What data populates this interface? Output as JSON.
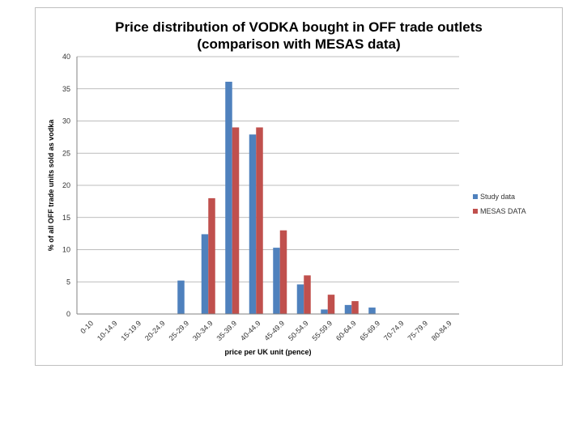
{
  "chart_data": {
    "type": "bar",
    "title_line1": "Price distribution of VODKA bought in OFF trade outlets",
    "title_line2": "(comparison with MESAS data)",
    "xlabel": "price per UK unit (pence)",
    "ylabel": "% of all OFF trade units sold as vodka",
    "ylim": [
      0,
      40
    ],
    "yticks": [
      "0",
      "5",
      "10",
      "15",
      "20",
      "25",
      "30",
      "35",
      "40"
    ],
    "categories": [
      "0-10",
      "10-14.9",
      "15-19.9",
      "20-24.9",
      "25-29.9",
      "30-34.9",
      "35-39.9",
      "40-44.9",
      "45-49.9",
      "50-54.9",
      "55-59.9",
      "60-64.9",
      "65-69.9",
      "70-74.9",
      "75-79.9",
      "80-84.9"
    ],
    "series": [
      {
        "name": "Study data",
        "color": "#4f81bd",
        "values": [
          0,
          0,
          0,
          0,
          5.2,
          12.4,
          36.1,
          27.9,
          10.3,
          4.6,
          0.7,
          1.4,
          1.0,
          0,
          0,
          0
        ]
      },
      {
        "name": "MESAS DATA",
        "color": "#c0504d",
        "values": [
          0,
          0,
          0,
          0,
          0,
          18,
          29,
          29,
          13,
          6,
          3,
          2,
          0,
          0,
          0,
          0
        ]
      }
    ],
    "grid": true,
    "legend_position": "right"
  }
}
